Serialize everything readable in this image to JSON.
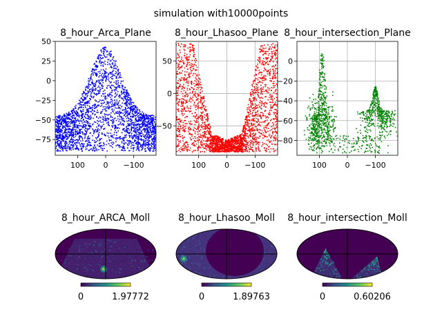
{
  "suptitle": "simulation with10000points",
  "chart_data": [
    {
      "type": "scatter",
      "title": "8_hour_Arca_Plane",
      "color": "#0000ff",
      "xlim": [
        180,
        -180
      ],
      "ylim": [
        -95,
        50
      ],
      "x_ticks": [
        100,
        0,
        -100
      ],
      "x_tick_labels": [
        "100",
        "0",
        "−100"
      ],
      "y_ticks": [
        50,
        25,
        0,
        -25,
        -50,
        -75
      ],
      "y_tick_labels": [
        "50",
        "25",
        "0",
        "−25",
        "−50",
        "−75"
      ],
      "grid": false,
      "description_shape": "band from -90 to -45 at the edges rising to a peak near +43 at x=0",
      "n_points": 10000
    },
    {
      "type": "scatter",
      "title": "8_hour_Lhasoo_Plane",
      "color": "#ff0000",
      "xlim": [
        180,
        -180
      ],
      "ylim": [
        -95,
        80
      ],
      "x_ticks": [
        100,
        0,
        -100
      ],
      "x_tick_labels": [
        "100",
        "0",
        "−100"
      ],
      "y_ticks": [
        50,
        0,
        -50
      ],
      "y_tick_labels": [
        "50",
        "0",
        "−50"
      ],
      "grid": true,
      "n_points": 10000
    },
    {
      "type": "scatter",
      "title": "8_hour_intersection_Plane",
      "color": "#008000",
      "xlim": [
        180,
        -180
      ],
      "ylim": [
        -95,
        20
      ],
      "x_ticks": [
        100,
        0,
        -100
      ],
      "x_tick_labels": [
        "100",
        "0",
        "−100"
      ],
      "y_ticks": [
        0,
        -20,
        -40,
        -60,
        -80
      ],
      "y_tick_labels": [
        "0",
        "−20",
        "−40",
        "−60",
        "−80"
      ],
      "grid": true
    },
    {
      "type": "heatmap",
      "title": "8_hour_ARCA_Moll",
      "projection": "mollweide",
      "colorbar_min": "0",
      "colorbar_max": "1.97772",
      "max_value": 1.97772
    },
    {
      "type": "heatmap",
      "title": "8_hour_Lhasoo_Moll",
      "projection": "mollweide",
      "colorbar_min": "0",
      "colorbar_max": "1.89763",
      "max_value": 1.89763
    },
    {
      "type": "heatmap",
      "title": "8_hour_intersection_Moll",
      "projection": "mollweide",
      "colorbar_min": "0",
      "colorbar_max": "0.60206",
      "max_value": 0.60206
    }
  ]
}
